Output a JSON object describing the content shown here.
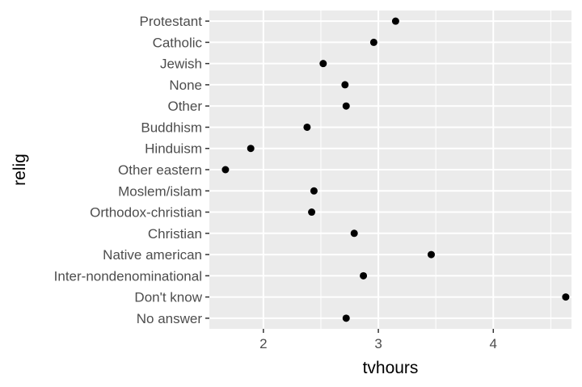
{
  "chart_data": {
    "type": "scatter",
    "xlabel": "tvhours",
    "ylabel": "relig",
    "xlim": [
      1.53,
      4.68
    ],
    "xticks": [
      2,
      3,
      4
    ],
    "xtick_labels": [
      "2",
      "3",
      "4"
    ],
    "grid": true,
    "categories": [
      "Protestant",
      "Catholic",
      "Jewish",
      "None",
      "Other",
      "Buddhism",
      "Hinduism",
      "Other eastern",
      "Moslem/islam",
      "Orthodox-christian",
      "Christian",
      "Native american",
      "Inter-nondenominational",
      "Don't know",
      "No answer"
    ],
    "values": [
      3.15,
      2.96,
      2.52,
      2.71,
      2.72,
      2.38,
      1.89,
      1.67,
      2.44,
      2.42,
      2.79,
      3.46,
      2.87,
      4.63,
      2.72
    ],
    "colors": {
      "panel": "#ebebeb",
      "grid": "#ffffff",
      "point": "#000000",
      "tick": "#333333",
      "text": "#4d4d4d"
    }
  }
}
